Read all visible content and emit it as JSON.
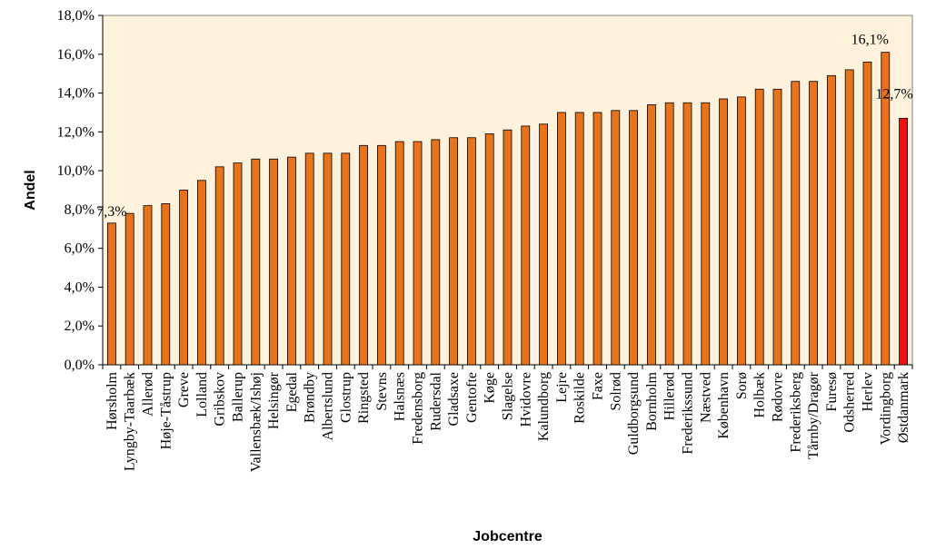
{
  "chart_data": {
    "type": "bar",
    "xlabel": "Jobcentre",
    "ylabel": "Andel",
    "ylim": [
      0,
      18
    ],
    "y_ticks": [
      "0,0%",
      "2,0%",
      "4,0%",
      "6,0%",
      "8,0%",
      "10,0%",
      "12,0%",
      "14,0%",
      "16,0%",
      "18,0%"
    ],
    "y_tick_values": [
      0,
      2,
      4,
      6,
      8,
      10,
      12,
      14,
      16,
      18
    ],
    "grid": false,
    "legend": "none",
    "colors": {
      "plot_background": "#FFF2DC",
      "bar": "#E8731A",
      "highlight_bar": "#EE1111",
      "bar_border": "#000000"
    },
    "categories": [
      "Hørsholm",
      "Lyngby-Taarbæk",
      "Allerød",
      "Høje-Tåstrup",
      "Greve",
      "Lolland",
      "Gribskov",
      "Ballerup",
      "Vallensbæk/Ishøj",
      "Helsingør",
      "Egedal",
      "Brøndby",
      "Albertslund",
      "Glostrup",
      "Ringsted",
      "Stevns",
      "Halsnæs",
      "Fredensborg",
      "Rudersdal",
      "Gladsaxe",
      "Gentofte",
      "Køge",
      "Slagelse",
      "Hvidovre",
      "Kalundborg",
      "Lejre",
      "Roskilde",
      "Faxe",
      "Solrød",
      "Guldborgsund",
      "Bornholm",
      "Hillerød",
      "Frederikssund",
      "Næstved",
      "København",
      "Sorø",
      "Holbæk",
      "Rødovre",
      "Frederiksberg",
      "Tårnby/Dragør",
      "Furesø",
      "Odsherred",
      "Herlev",
      "Vordingborg",
      "Østdanmark"
    ],
    "values": [
      7.3,
      7.8,
      8.2,
      8.3,
      9.0,
      9.5,
      10.2,
      10.4,
      10.6,
      10.6,
      10.7,
      10.9,
      10.9,
      10.9,
      11.3,
      11.3,
      11.5,
      11.5,
      11.6,
      11.7,
      11.7,
      11.9,
      12.1,
      12.3,
      12.4,
      13.0,
      13.0,
      13.0,
      13.1,
      13.1,
      13.4,
      13.5,
      13.5,
      13.5,
      13.7,
      13.8,
      14.2,
      14.2,
      14.6,
      14.6,
      14.9,
      15.2,
      15.6,
      16.1,
      12.7
    ],
    "highlight_index": 44,
    "data_labels": [
      {
        "index": 0,
        "text": "7,3%"
      },
      {
        "index": 43,
        "text": "16,1%"
      },
      {
        "index": 44,
        "text": "12,7%"
      }
    ]
  }
}
